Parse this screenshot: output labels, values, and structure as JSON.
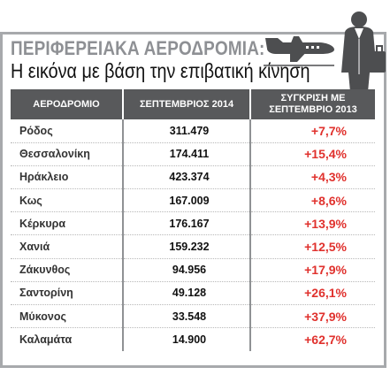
{
  "header": {
    "title": "ΠΕΡΙΦΕΡΕΙΑΚΑ ΑΕΡΟΔΡΟΜΙΑ:",
    "subtitle": "Η εικόνα με βάση την επιβατική κίνηση"
  },
  "table": {
    "columns": [
      "ΑΕΡΟΔΡΟΜΙΟ",
      "ΣΕΠΤΕΜΒΡΙΟΣ 2014",
      "ΣΥΓΚΡΙΣΗ ΜΕ ΣΕΠΤΕΜΒΡΙΟ 2013"
    ],
    "rows": [
      {
        "airport": "Ρόδος",
        "passengers": "311.479",
        "change": "+7,7%"
      },
      {
        "airport": "Θεσσαλονίκη",
        "passengers": "174.411",
        "change": "+15,4%"
      },
      {
        "airport": "Ηράκλειο",
        "passengers": "423.374",
        "change": "+4,3%"
      },
      {
        "airport": "Κως",
        "passengers": "167.009",
        "change": "+8,6%"
      },
      {
        "airport": "Κέρκυρα",
        "passengers": "176.167",
        "change": "+13,9%"
      },
      {
        "airport": "Χανιά",
        "passengers": "159.232",
        "change": "+12,5%"
      },
      {
        "airport": "Ζάκυνθος",
        "passengers": "94.956",
        "change": "+17,9%"
      },
      {
        "airport": "Σαντορίνη",
        "passengers": "49.128",
        "change": "+26,1%"
      },
      {
        "airport": "Μύκονος",
        "passengers": "33.548",
        "change": "+37,9%"
      },
      {
        "airport": "Καλαμάτα",
        "passengers": "14.900",
        "change": "+62,7%"
      }
    ]
  },
  "colors": {
    "frame": "#a7a9ac",
    "header_bg": "#58595b",
    "title_gray": "#8e9094",
    "percent_red": "#e0312d"
  },
  "icons": [
    "airplane-icon",
    "traveler-icon"
  ]
}
